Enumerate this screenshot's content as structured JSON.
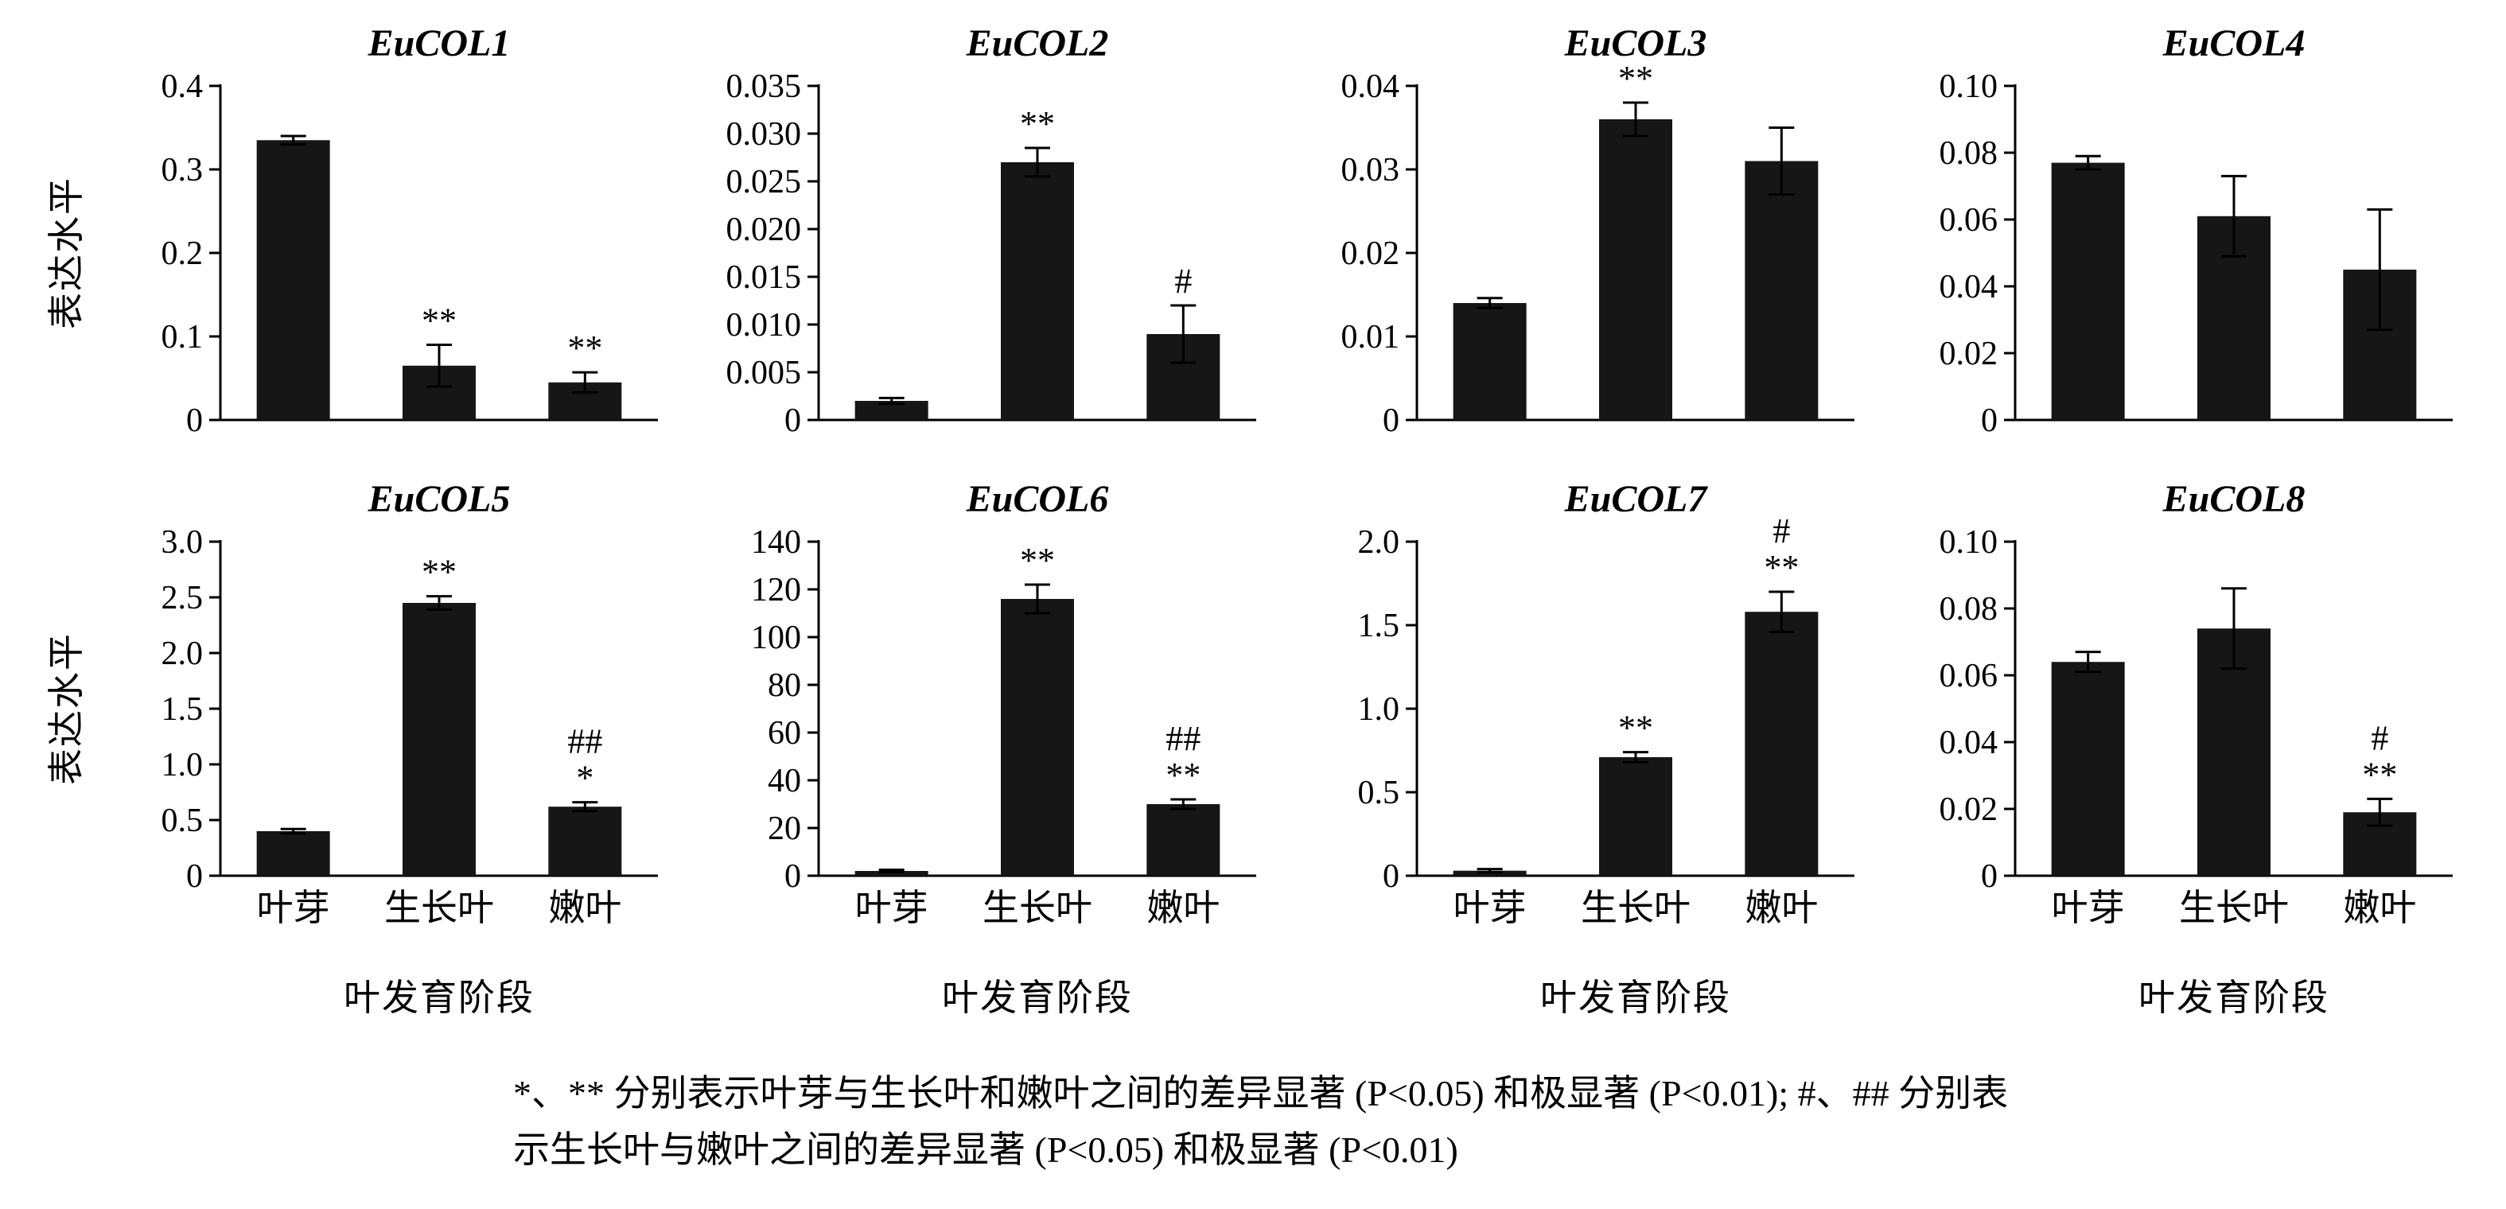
{
  "figure": {
    "ylabel": "表达水平",
    "xlabel": "叶发育阶段",
    "footnote_line1": "*、** 分别表示叶芽与生长叶和嫩叶之间的差异显著 (P<0.05) 和极显著 (P<0.01); #、## 分别表",
    "footnote_line2": "示生长叶与嫩叶之间的差异显著 (P<0.05) 和极显著 (P<0.01)"
  },
  "colors": {
    "bar": "#161616",
    "axis": "#000000",
    "background": "#ffffff"
  },
  "chart_data": [
    {
      "type": "bar",
      "title": "EuCOL1",
      "categories": [
        "叶芽",
        "生长叶",
        "嫩叶"
      ],
      "values": [
        0.335,
        0.065,
        0.045
      ],
      "errors": [
        0.005,
        0.025,
        0.012
      ],
      "annotations": [
        [],
        [
          "**"
        ],
        [
          "**"
        ]
      ],
      "ylim": [
        0,
        0.4
      ],
      "yticks": [
        0,
        0.1,
        0.2,
        0.3,
        0.4
      ],
      "ytick_labels": [
        "0",
        "0.1",
        "0.2",
        "0.3",
        "0.4"
      ],
      "xlabel": "",
      "xtick_labels_visible": false
    },
    {
      "type": "bar",
      "title": "EuCOL2",
      "categories": [
        "叶芽",
        "生长叶",
        "嫩叶"
      ],
      "values": [
        0.002,
        0.027,
        0.009
      ],
      "errors": [
        0.0003,
        0.0015,
        0.003
      ],
      "annotations": [
        [],
        [
          "**"
        ],
        [
          "#"
        ]
      ],
      "ylim": [
        0,
        0.035
      ],
      "yticks": [
        0,
        0.005,
        0.01,
        0.015,
        0.02,
        0.025,
        0.03,
        0.035
      ],
      "ytick_labels": [
        "0",
        "0.005",
        "0.010",
        "0.015",
        "0.020",
        "0.025",
        "0.030",
        "0.035"
      ],
      "xlabel": "",
      "xtick_labels_visible": false
    },
    {
      "type": "bar",
      "title": "EuCOL3",
      "categories": [
        "叶芽",
        "生长叶",
        "嫩叶"
      ],
      "values": [
        0.014,
        0.036,
        0.031
      ],
      "errors": [
        0.0006,
        0.002,
        0.004
      ],
      "annotations": [
        [],
        [
          "**"
        ],
        []
      ],
      "ylim": [
        0,
        0.04
      ],
      "yticks": [
        0,
        0.01,
        0.02,
        0.03,
        0.04
      ],
      "ytick_labels": [
        "0",
        "0.01",
        "0.02",
        "0.03",
        "0.04"
      ],
      "xlabel": "",
      "xtick_labels_visible": false
    },
    {
      "type": "bar",
      "title": "EuCOL4",
      "categories": [
        "叶芽",
        "生长叶",
        "嫩叶"
      ],
      "values": [
        0.077,
        0.061,
        0.045
      ],
      "errors": [
        0.002,
        0.012,
        0.018
      ],
      "annotations": [
        [],
        [],
        []
      ],
      "ylim": [
        0,
        0.1
      ],
      "yticks": [
        0,
        0.02,
        0.04,
        0.06,
        0.08,
        0.1
      ],
      "ytick_labels": [
        "0",
        "0.02",
        "0.04",
        "0.06",
        "0.08",
        "0.10"
      ],
      "xlabel": "",
      "xtick_labels_visible": false
    },
    {
      "type": "bar",
      "title": "EuCOL5",
      "categories": [
        "叶芽",
        "生长叶",
        "嫩叶"
      ],
      "values": [
        0.4,
        2.45,
        0.62
      ],
      "errors": [
        0.02,
        0.06,
        0.04
      ],
      "annotations": [
        [],
        [
          "**"
        ],
        [
          "##",
          "*"
        ]
      ],
      "ylim": [
        0,
        3.0
      ],
      "yticks": [
        0,
        0.5,
        1.0,
        1.5,
        2.0,
        2.5,
        3.0
      ],
      "ytick_labels": [
        "0",
        "0.5",
        "1.0",
        "1.5",
        "2.0",
        "2.5",
        "3.0"
      ],
      "xlabel": "叶发育阶段",
      "xtick_labels_visible": true
    },
    {
      "type": "bar",
      "title": "EuCOL6",
      "categories": [
        "叶芽",
        "生长叶",
        "嫩叶"
      ],
      "values": [
        2,
        116,
        30
      ],
      "errors": [
        0.5,
        6,
        2
      ],
      "annotations": [
        [],
        [
          "**"
        ],
        [
          "##",
          "**"
        ]
      ],
      "ylim": [
        0,
        140
      ],
      "yticks": [
        0,
        20,
        40,
        60,
        80,
        100,
        120,
        140
      ],
      "ytick_labels": [
        "0",
        "20",
        "40",
        "60",
        "80",
        "100",
        "120",
        "140"
      ],
      "xlabel": "叶发育阶段",
      "xtick_labels_visible": true
    },
    {
      "type": "bar",
      "title": "EuCOL7",
      "categories": [
        "叶芽",
        "生长叶",
        "嫩叶"
      ],
      "values": [
        0.03,
        0.71,
        1.58
      ],
      "errors": [
        0.01,
        0.03,
        0.12
      ],
      "annotations": [
        [],
        [
          "**"
        ],
        [
          "#",
          "**"
        ]
      ],
      "ylim": [
        0,
        2.0
      ],
      "yticks": [
        0,
        0.5,
        1.0,
        1.5,
        2.0
      ],
      "ytick_labels": [
        "0",
        "0.5",
        "1.0",
        "1.5",
        "2.0"
      ],
      "xlabel": "叶发育阶段",
      "xtick_labels_visible": true
    },
    {
      "type": "bar",
      "title": "EuCOL8",
      "categories": [
        "叶芽",
        "生长叶",
        "嫩叶"
      ],
      "values": [
        0.064,
        0.074,
        0.019
      ],
      "errors": [
        0.003,
        0.012,
        0.004
      ],
      "annotations": [
        [],
        [],
        [
          "#",
          "**"
        ]
      ],
      "ylim": [
        0,
        0.1
      ],
      "yticks": [
        0,
        0.02,
        0.04,
        0.06,
        0.08,
        0.1
      ],
      "ytick_labels": [
        "0",
        "0.02",
        "0.04",
        "0.06",
        "0.08",
        "0.10"
      ],
      "xlabel": "叶发育阶段",
      "xtick_labels_visible": true
    }
  ]
}
